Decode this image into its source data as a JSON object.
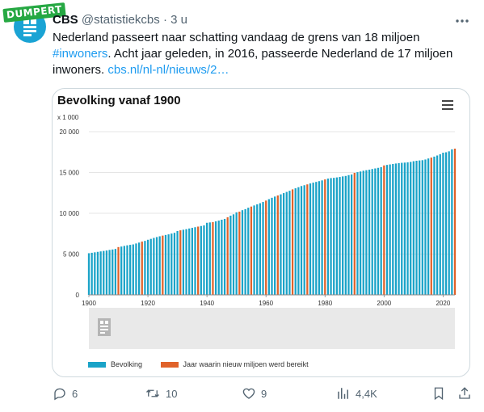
{
  "watermark": "DUMPERT",
  "tweet": {
    "author_name": "CBS",
    "handle": "@statistiekcbs",
    "separator": "·",
    "time": "3 u",
    "text_part1": "Nederland passeert naar schatting vandaag de grens van 18 miljoen",
    "hashtag": "#inwoners",
    "text_part2": ". Acht jaar geleden, in 2016, passeerde Nederland de 17 miljoen inwoners.",
    "link": "cbs.nl/nl-nl/nieuws/2…"
  },
  "actions": {
    "replies": "6",
    "retweets": "10",
    "likes": "9",
    "views": "4,4K"
  },
  "colors": {
    "bar": "#1aa3c8",
    "milestone": "#e0622a",
    "link": "#1d9bf0"
  },
  "chart_data": {
    "type": "bar",
    "title": "Bevolking vanaf 1900",
    "unit_label": "x 1 000",
    "yticks": [
      "0",
      "5 000",
      "10 000",
      "15 000",
      "20 000"
    ],
    "ylim": [
      0,
      20000
    ],
    "xticks": [
      "1900",
      "1920",
      "1940",
      "1960",
      "1980",
      "2000",
      "2020"
    ],
    "xlim": [
      1900,
      2024
    ],
    "x_start": 1900,
    "series": [
      {
        "name": "Bevolking"
      },
      {
        "name": "Jaar waarin nieuw miljoen werd bereikt"
      }
    ],
    "milestone_years": [
      1910,
      1918,
      1925,
      1931,
      1937,
      1942,
      1947,
      1951,
      1955,
      1960,
      1964,
      1969,
      1974,
      1980,
      1990,
      2000,
      2016,
      2024
    ],
    "values": [
      5104,
      5158,
      5215,
      5272,
      5327,
      5383,
      5435,
      5507,
      5561,
      5628,
      5858,
      5920,
      6000,
      6072,
      6129,
      6185,
      6299,
      6409,
      6528,
      6617,
      6754,
      6865,
      6978,
      7084,
      7181,
      7265,
      7343,
      7416,
      7513,
      7606,
      7825,
      7912,
      7983,
      8052,
      8134,
      8214,
      8294,
      8368,
      8438,
      8511,
      8834,
      8878,
      8922,
      9012,
      9102,
      9209,
      9312,
      9512,
      9708,
      9871,
      10114,
      10200,
      10380,
      10508,
      10681,
      10821,
      10958,
      11096,
      11231,
      11383,
      11556,
      11729,
      11897,
      12049,
      12187,
      12318,
      12471,
      12617,
      12759,
      12932,
      13061,
      13194,
      13339,
      13440,
      13543,
      13654,
      13755,
      13845,
      13937,
      14030,
      14149,
      14247,
      14313,
      14341,
      14395,
      14450,
      14520,
      14575,
      14674,
      14751,
      14953,
      15040,
      15121,
      15214,
      15279,
      15341,
      15424,
      15494,
      15568,
      15654,
      15864,
      15926,
      15984,
      16044,
      16100,
      16149,
      16185,
      16210,
      16242,
      16295,
      16380,
      16435,
      16474,
      16507,
      16590,
      16714,
      16827,
      16944,
      17080,
      17232,
      17425,
      17476,
      17591,
      17838,
      17920
    ]
  },
  "legend": {
    "bar_label": "Bevolking",
    "milestone_label": "Jaar waarin nieuw miljoen werd bereikt"
  }
}
